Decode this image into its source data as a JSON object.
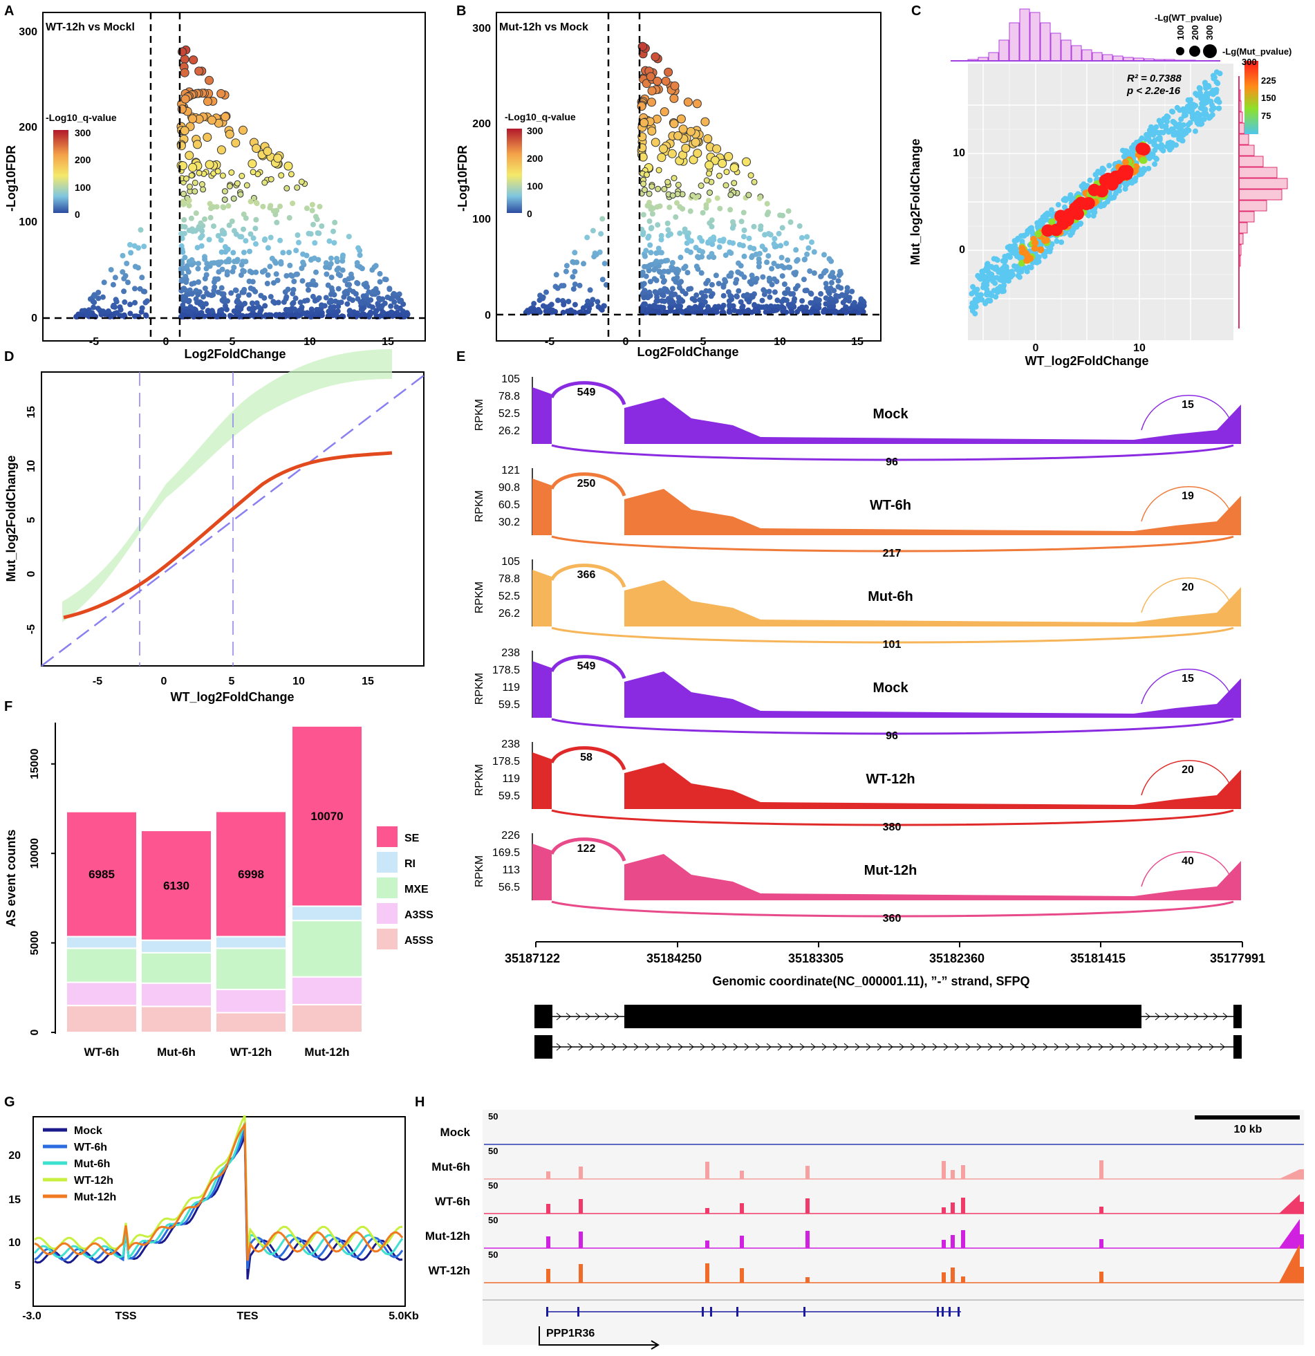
{
  "panels": [
    "A",
    "B",
    "C",
    "D",
    "E",
    "F",
    "G",
    "H"
  ],
  "panelA": {
    "title": "WT-12h vs Mockl",
    "xlabel": "Log2FoldChange",
    "ylabel": "-Log10FDR",
    "legend_title": "-Log10_q-value",
    "legend_ticks": [
      "300",
      "200",
      "100",
      "0"
    ],
    "xticks": [
      "-5",
      "0",
      "5",
      "10",
      "15"
    ],
    "yticks": [
      "0",
      "100",
      "200",
      "300"
    ]
  },
  "panelB": {
    "title": "Mut-12h vs Mock",
    "xlabel": "Log2FoldChange",
    "ylabel": "-Log10FDR",
    "legend_title": "-Log10_q-value",
    "legend_ticks": [
      "300",
      "200",
      "100",
      "0"
    ],
    "xticks": [
      "-5",
      "0",
      "5",
      "10",
      "15"
    ],
    "yticks": [
      "0",
      "100",
      "200",
      "300"
    ]
  },
  "panelC": {
    "xlabel": "WT_log2FoldChange",
    "ylabel": "Mut_log2FoldChange",
    "r2": "R² = 0.7388",
    "p": "p < 2.2e-16",
    "size_title": "-Lg(WT_pvalue)",
    "size_ticks": [
      "100",
      "200",
      "300"
    ],
    "color_title": "-Lg(Mut_pvalue)",
    "color_ticks": [
      "300",
      "225",
      "150",
      "75"
    ],
    "xticks": [
      "0",
      "10"
    ],
    "yticks": [
      "0",
      "10"
    ]
  },
  "panelD": {
    "xlabel": "WT_log2FoldChange",
    "ylabel": "Mut_log2FoldChange",
    "xticks": [
      "-5",
      "0",
      "5",
      "10",
      "15"
    ],
    "yticks": [
      "-5",
      "0",
      "5",
      "10",
      "15"
    ]
  },
  "panelE": {
    "tracks": [
      {
        "name": "Mock",
        "ticks": [
          "105",
          "78.8",
          "52.5",
          "26.2"
        ],
        "j1": "549",
        "j2": "15",
        "j3": "96",
        "color": "#8a2be2"
      },
      {
        "name": "WT-6h",
        "ticks": [
          "121",
          "90.8",
          "60.5",
          "30.2"
        ],
        "j1": "250",
        "j2": "19",
        "j3": "217",
        "color": "#f07a3a"
      },
      {
        "name": "Mut-6h",
        "ticks": [
          "105",
          "78.8",
          "52.5",
          "26.2"
        ],
        "j1": "366",
        "j2": "20",
        "j3": "101",
        "color": "#f7b55a"
      },
      {
        "name": "Mock",
        "ticks": [
          "238",
          "178.5",
          "119",
          "59.5"
        ],
        "j1": "549",
        "j2": "15",
        "j3": "96",
        "color": "#8a2be2"
      },
      {
        "name": "WT-12h",
        "ticks": [
          "238",
          "178.5",
          "119",
          "59.5"
        ],
        "j1": "58",
        "j2": "20",
        "j3": "380",
        "color": "#e02a2a"
      },
      {
        "name": "Mut-12h",
        "ticks": [
          "226",
          "169.5",
          "113",
          "56.5"
        ],
        "j1": "122",
        "j2": "40",
        "j3": "360",
        "color": "#e84a8a"
      }
    ],
    "ylabel": "RPKM",
    "coords": [
      "35187122",
      "35184250",
      "35183305",
      "35182360",
      "35181415",
      "35177991"
    ],
    "xlabel": "Genomic coordinate(NC_000001.11), ”-” strand, SFPQ"
  },
  "chart_data": {
    "type": "bar",
    "title": "",
    "xlabel": "",
    "ylabel": "AS event counts",
    "ylim": [
      0,
      17000
    ],
    "categories": [
      "WT-6h",
      "Mut-6h",
      "WT-12h",
      "Mut-12h"
    ],
    "series": [
      {
        "name": "A5SS",
        "values": [
          1500,
          1450,
          1100,
          1550
        ]
      },
      {
        "name": "A3SS",
        "values": [
          1300,
          1300,
          1300,
          1550
        ]
      },
      {
        "name": "MXE",
        "values": [
          1900,
          1700,
          2300,
          3150
        ]
      },
      {
        "name": "RI",
        "values": [
          650,
          700,
          650,
          800
        ]
      },
      {
        "name": "SE",
        "values": [
          6985,
          6130,
          6998,
          10070
        ]
      }
    ],
    "labels": [
      "6985",
      "6130",
      "6998",
      "10070"
    ],
    "yticks": [
      "0",
      "5000",
      "10000",
      "15000"
    ]
  },
  "legendF": [
    "SE",
    "RI",
    "MXE",
    "A3SS",
    "A5SS"
  ],
  "panelG": {
    "legend": [
      "Mock",
      "WT-6h",
      "Mut-6h",
      "WT-12h",
      "Mut-12h"
    ],
    "xticks": [
      "-3.0",
      "TSS",
      "TES",
      "5.0Kb"
    ],
    "yticks": [
      "5",
      "10",
      "15",
      "20"
    ]
  },
  "panelH": {
    "tracks": [
      "Mock",
      "Mut-6h",
      "WT-6h",
      "Mut-12h",
      "WT-12h"
    ],
    "scale": "50",
    "scalebar": "10 kb",
    "gene": "PPP1R36"
  },
  "colors": {
    "SE": "#fc5590",
    "RI": "#c9e7f8",
    "MXE": "#c8f5c8",
    "A3SS": "#f7c9f7",
    "A5SS": "#f8c8c8"
  }
}
